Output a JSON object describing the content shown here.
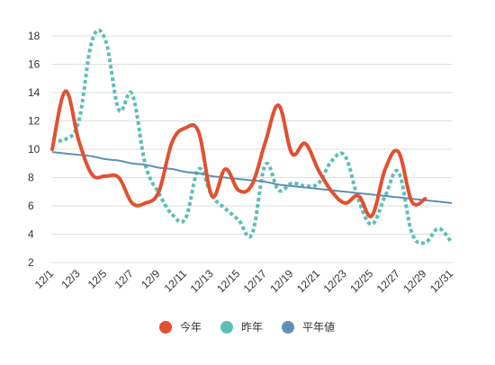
{
  "chart_data": {
    "type": "line",
    "title": "",
    "xlabel": "",
    "ylabel": "",
    "ylim": [
      2,
      18
    ],
    "yticks": [
      2,
      4,
      6,
      8,
      10,
      12,
      14,
      16,
      18
    ],
    "grid": true,
    "legend_position": "bottom",
    "x": [
      "12/1",
      "12/2",
      "12/3",
      "12/4",
      "12/5",
      "12/6",
      "12/7",
      "12/8",
      "12/9",
      "12/10",
      "12/11",
      "12/12",
      "12/13",
      "12/14",
      "12/15",
      "12/16",
      "12/17",
      "12/18",
      "12/19",
      "12/20",
      "12/21",
      "12/22",
      "12/23",
      "12/24",
      "12/25",
      "12/26",
      "12/27",
      "12/28",
      "12/29",
      "12/30",
      "12/31"
    ],
    "x_tick_labels": [
      "12/1",
      "12/3",
      "12/5",
      "12/7",
      "12/9",
      "12/11",
      "12/13",
      "12/15",
      "12/17",
      "12/19",
      "12/21",
      "12/23",
      "12/25",
      "12/27",
      "12/29",
      "12/31"
    ],
    "series": [
      {
        "name": "今年",
        "color": "#e2502f",
        "style": "solid",
        "values": [
          10.0,
          14.1,
          10.6,
          8.2,
          8.1,
          8.0,
          6.2,
          6.2,
          7.0,
          10.5,
          11.5,
          11.2,
          6.7,
          8.6,
          7.1,
          7.5,
          10.5,
          13.1,
          9.7,
          10.4,
          8.5,
          7.0,
          6.2,
          6.7,
          5.3,
          8.6,
          9.8,
          6.3,
          6.5,
          null,
          null
        ]
      },
      {
        "name": "昨年",
        "color": "#5cbfb4",
        "style": "dotted",
        "values": [
          10.7,
          10.7,
          12.0,
          17.7,
          17.7,
          12.8,
          13.9,
          8.9,
          6.9,
          5.4,
          5.1,
          8.6,
          6.7,
          5.8,
          5.0,
          4.0,
          8.9,
          7.1,
          7.6,
          7.4,
          7.6,
          9.2,
          9.5,
          6.4,
          4.7,
          6.7,
          8.4,
          4.1,
          3.4,
          4.4,
          3.4
        ]
      },
      {
        "name": "平年値",
        "color": "#5f8fb4",
        "style": "solid",
        "values": [
          9.8,
          9.7,
          9.6,
          9.5,
          9.3,
          9.2,
          9.0,
          8.9,
          8.7,
          8.6,
          8.4,
          8.3,
          8.1,
          8.0,
          7.9,
          7.8,
          7.7,
          7.5,
          7.4,
          7.3,
          7.2,
          7.1,
          7.0,
          6.9,
          6.8,
          6.7,
          6.6,
          6.5,
          6.4,
          6.3,
          6.2
        ]
      }
    ]
  }
}
